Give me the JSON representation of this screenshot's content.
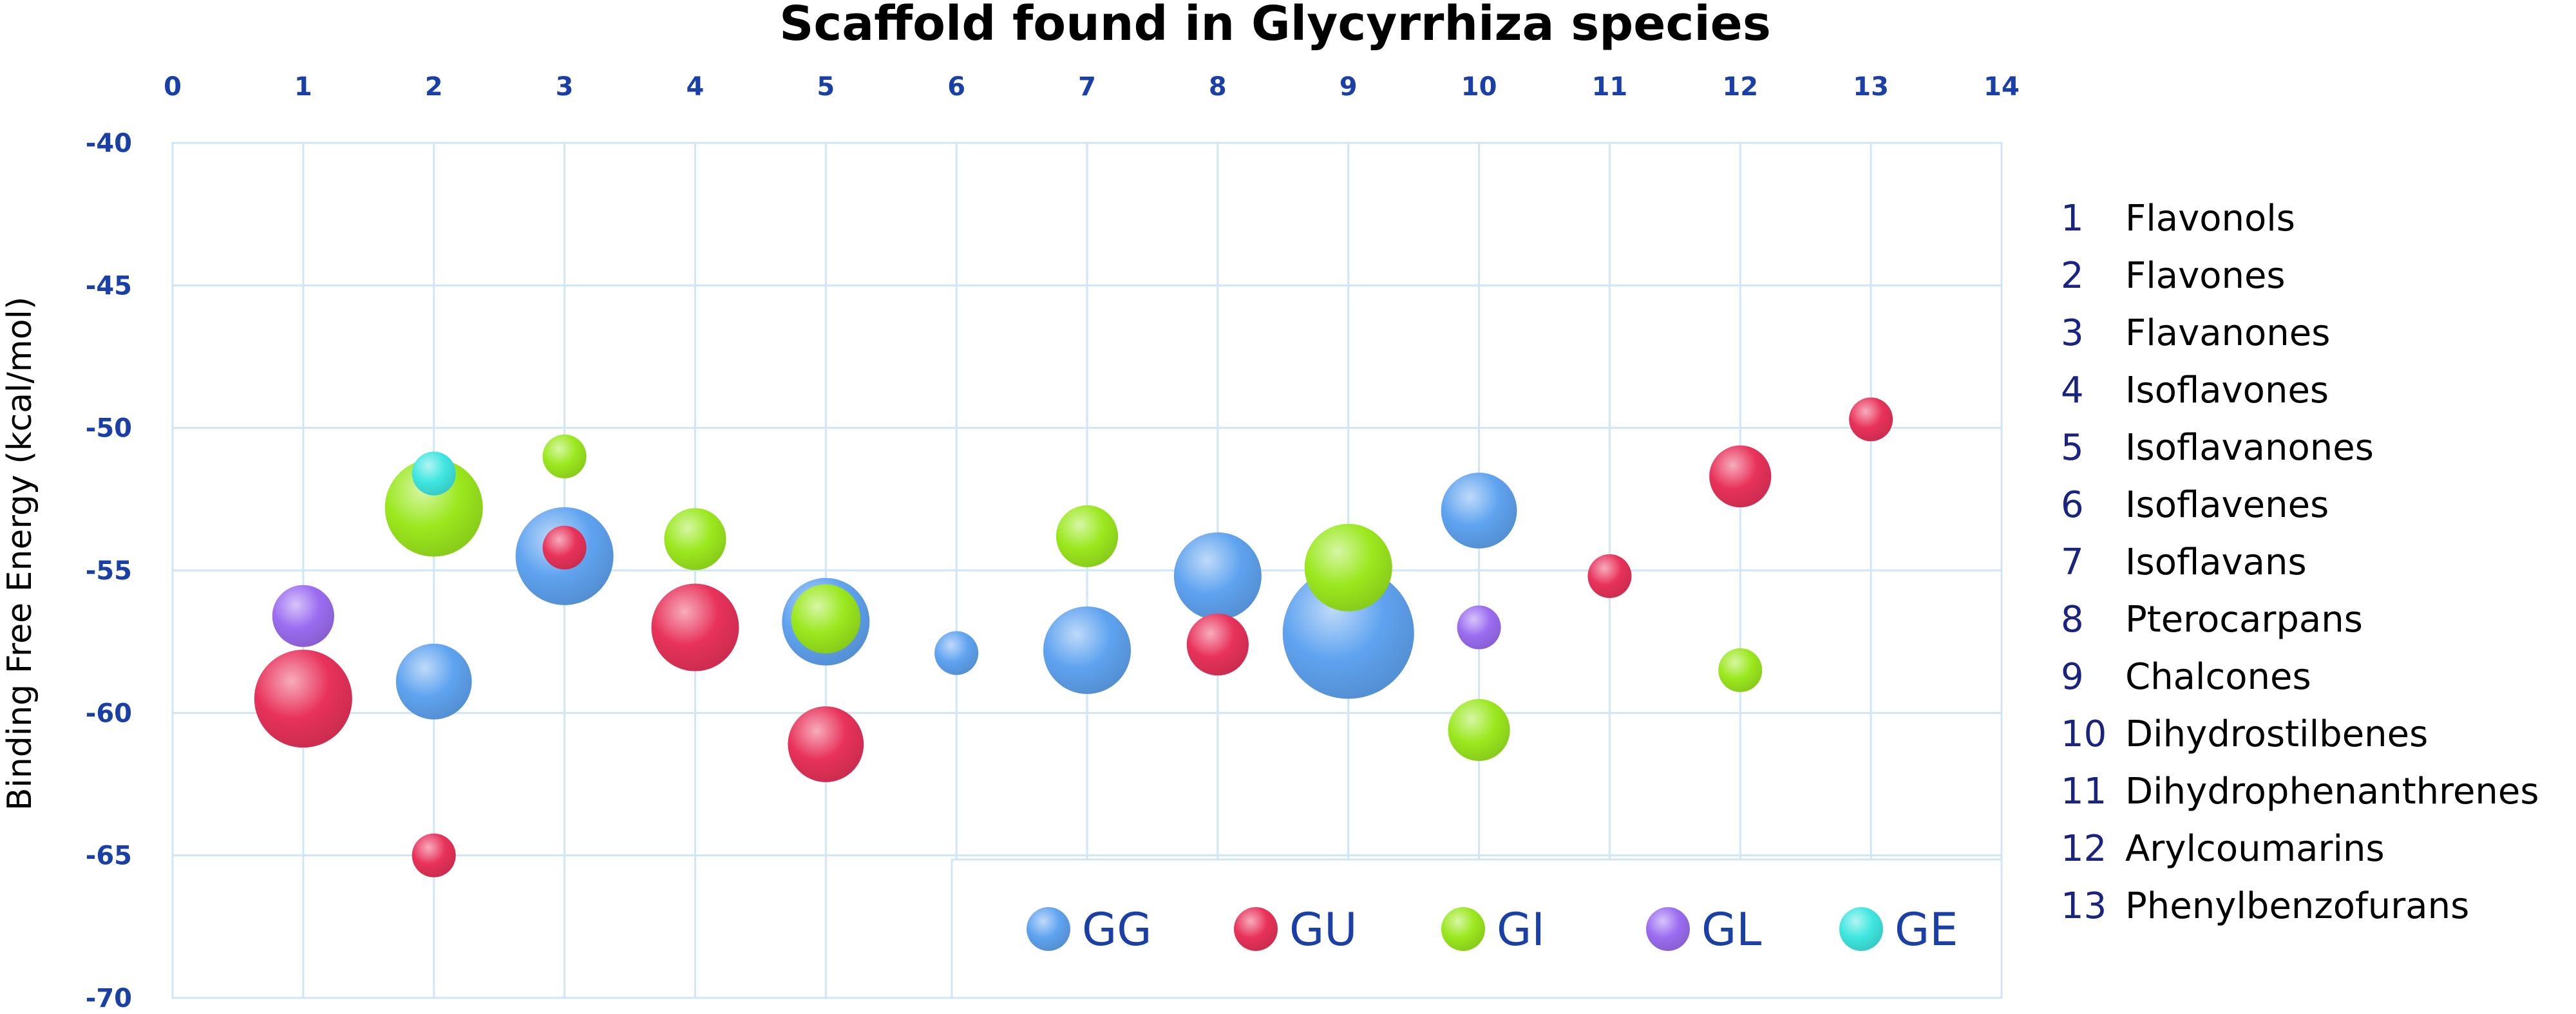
{
  "chart_data": {
    "type": "bubble",
    "title": "Scaffold found in Glycyrrhiza species",
    "xlabel": "",
    "ylabel": "Binding Free Energy (kcal/mol)",
    "xlim": [
      0,
      14
    ],
    "ylim": [
      -70,
      -40
    ],
    "x_ticks": [
      "0",
      "1",
      "2",
      "3",
      "4",
      "5",
      "6",
      "7",
      "8",
      "9",
      "10",
      "11",
      "12",
      "13",
      "14"
    ],
    "y_ticks": [
      "-40",
      "-45",
      "-50",
      "-55",
      "-60",
      "-65",
      "-70"
    ],
    "grid": true,
    "legend_position": "bottom-right",
    "colors": {
      "GG": "#5fa3f0",
      "GU": "#e8325a",
      "GI": "#9be81e",
      "GL": "#9b6cf0",
      "GE": "#3fe6e0"
    },
    "series": [
      {
        "name": "GG",
        "points": [
          {
            "x": 2,
            "y": -58.9,
            "size": 3
          },
          {
            "x": 3,
            "y": -54.5,
            "size": 5
          },
          {
            "x": 5,
            "y": -56.8,
            "size": 4
          },
          {
            "x": 6,
            "y": -57.9,
            "size": 1
          },
          {
            "x": 7,
            "y": -57.8,
            "size": 4
          },
          {
            "x": 8,
            "y": -55.2,
            "size": 4
          },
          {
            "x": 9,
            "y": -57.2,
            "size": 9
          },
          {
            "x": 10,
            "y": -52.9,
            "size": 3
          }
        ]
      },
      {
        "name": "GU",
        "points": [
          {
            "x": 1,
            "y": -59.5,
            "size": 5
          },
          {
            "x": 2,
            "y": -65.0,
            "size": 1
          },
          {
            "x": 3,
            "y": -54.2,
            "size": 1
          },
          {
            "x": 4,
            "y": -57.0,
            "size": 4
          },
          {
            "x": 5,
            "y": -61.1,
            "size": 3
          },
          {
            "x": 8,
            "y": -57.6,
            "size": 2
          },
          {
            "x": 11,
            "y": -55.2,
            "size": 1
          },
          {
            "x": 12,
            "y": -51.7,
            "size": 2
          },
          {
            "x": 13,
            "y": -49.7,
            "size": 1
          }
        ]
      },
      {
        "name": "GI",
        "points": [
          {
            "x": 2,
            "y": -52.8,
            "size": 5
          },
          {
            "x": 3,
            "y": -51.0,
            "size": 1
          },
          {
            "x": 4,
            "y": -53.9,
            "size": 2
          },
          {
            "x": 5,
            "y": -56.7,
            "size": 2.5
          },
          {
            "x": 7,
            "y": -53.8,
            "size": 2
          },
          {
            "x": 9,
            "y": -54.9,
            "size": 4
          },
          {
            "x": 10,
            "y": -60.6,
            "size": 2
          },
          {
            "x": 12,
            "y": -58.5,
            "size": 1
          }
        ]
      },
      {
        "name": "GL",
        "points": [
          {
            "x": 1,
            "y": -56.6,
            "size": 2
          },
          {
            "x": 10,
            "y": -57.0,
            "size": 1
          }
        ]
      },
      {
        "name": "GE",
        "points": [
          {
            "x": 2,
            "y": -51.6,
            "size": 1
          }
        ]
      }
    ],
    "scaffold_key": [
      {
        "num": "1",
        "name": "Flavonols"
      },
      {
        "num": "2",
        "name": "Flavones"
      },
      {
        "num": "3",
        "name": "Flavanones"
      },
      {
        "num": "4",
        "name": "Isoflavones"
      },
      {
        "num": "5",
        "name": "Isoflavanones"
      },
      {
        "num": "6",
        "name": "Isoflavenes"
      },
      {
        "num": "7",
        "name": "Isoflavans"
      },
      {
        "num": "8",
        "name": "Pterocarpans"
      },
      {
        "num": "9",
        "name": "Chalcones"
      },
      {
        "num": "10",
        "name": "Dihydrostilbenes"
      },
      {
        "num": "11",
        "name": "Dihydrophenanthrenes"
      },
      {
        "num": "12",
        "name": "Arylcoumarins"
      },
      {
        "num": "13",
        "name": "Phenylbenzofurans"
      }
    ]
  }
}
